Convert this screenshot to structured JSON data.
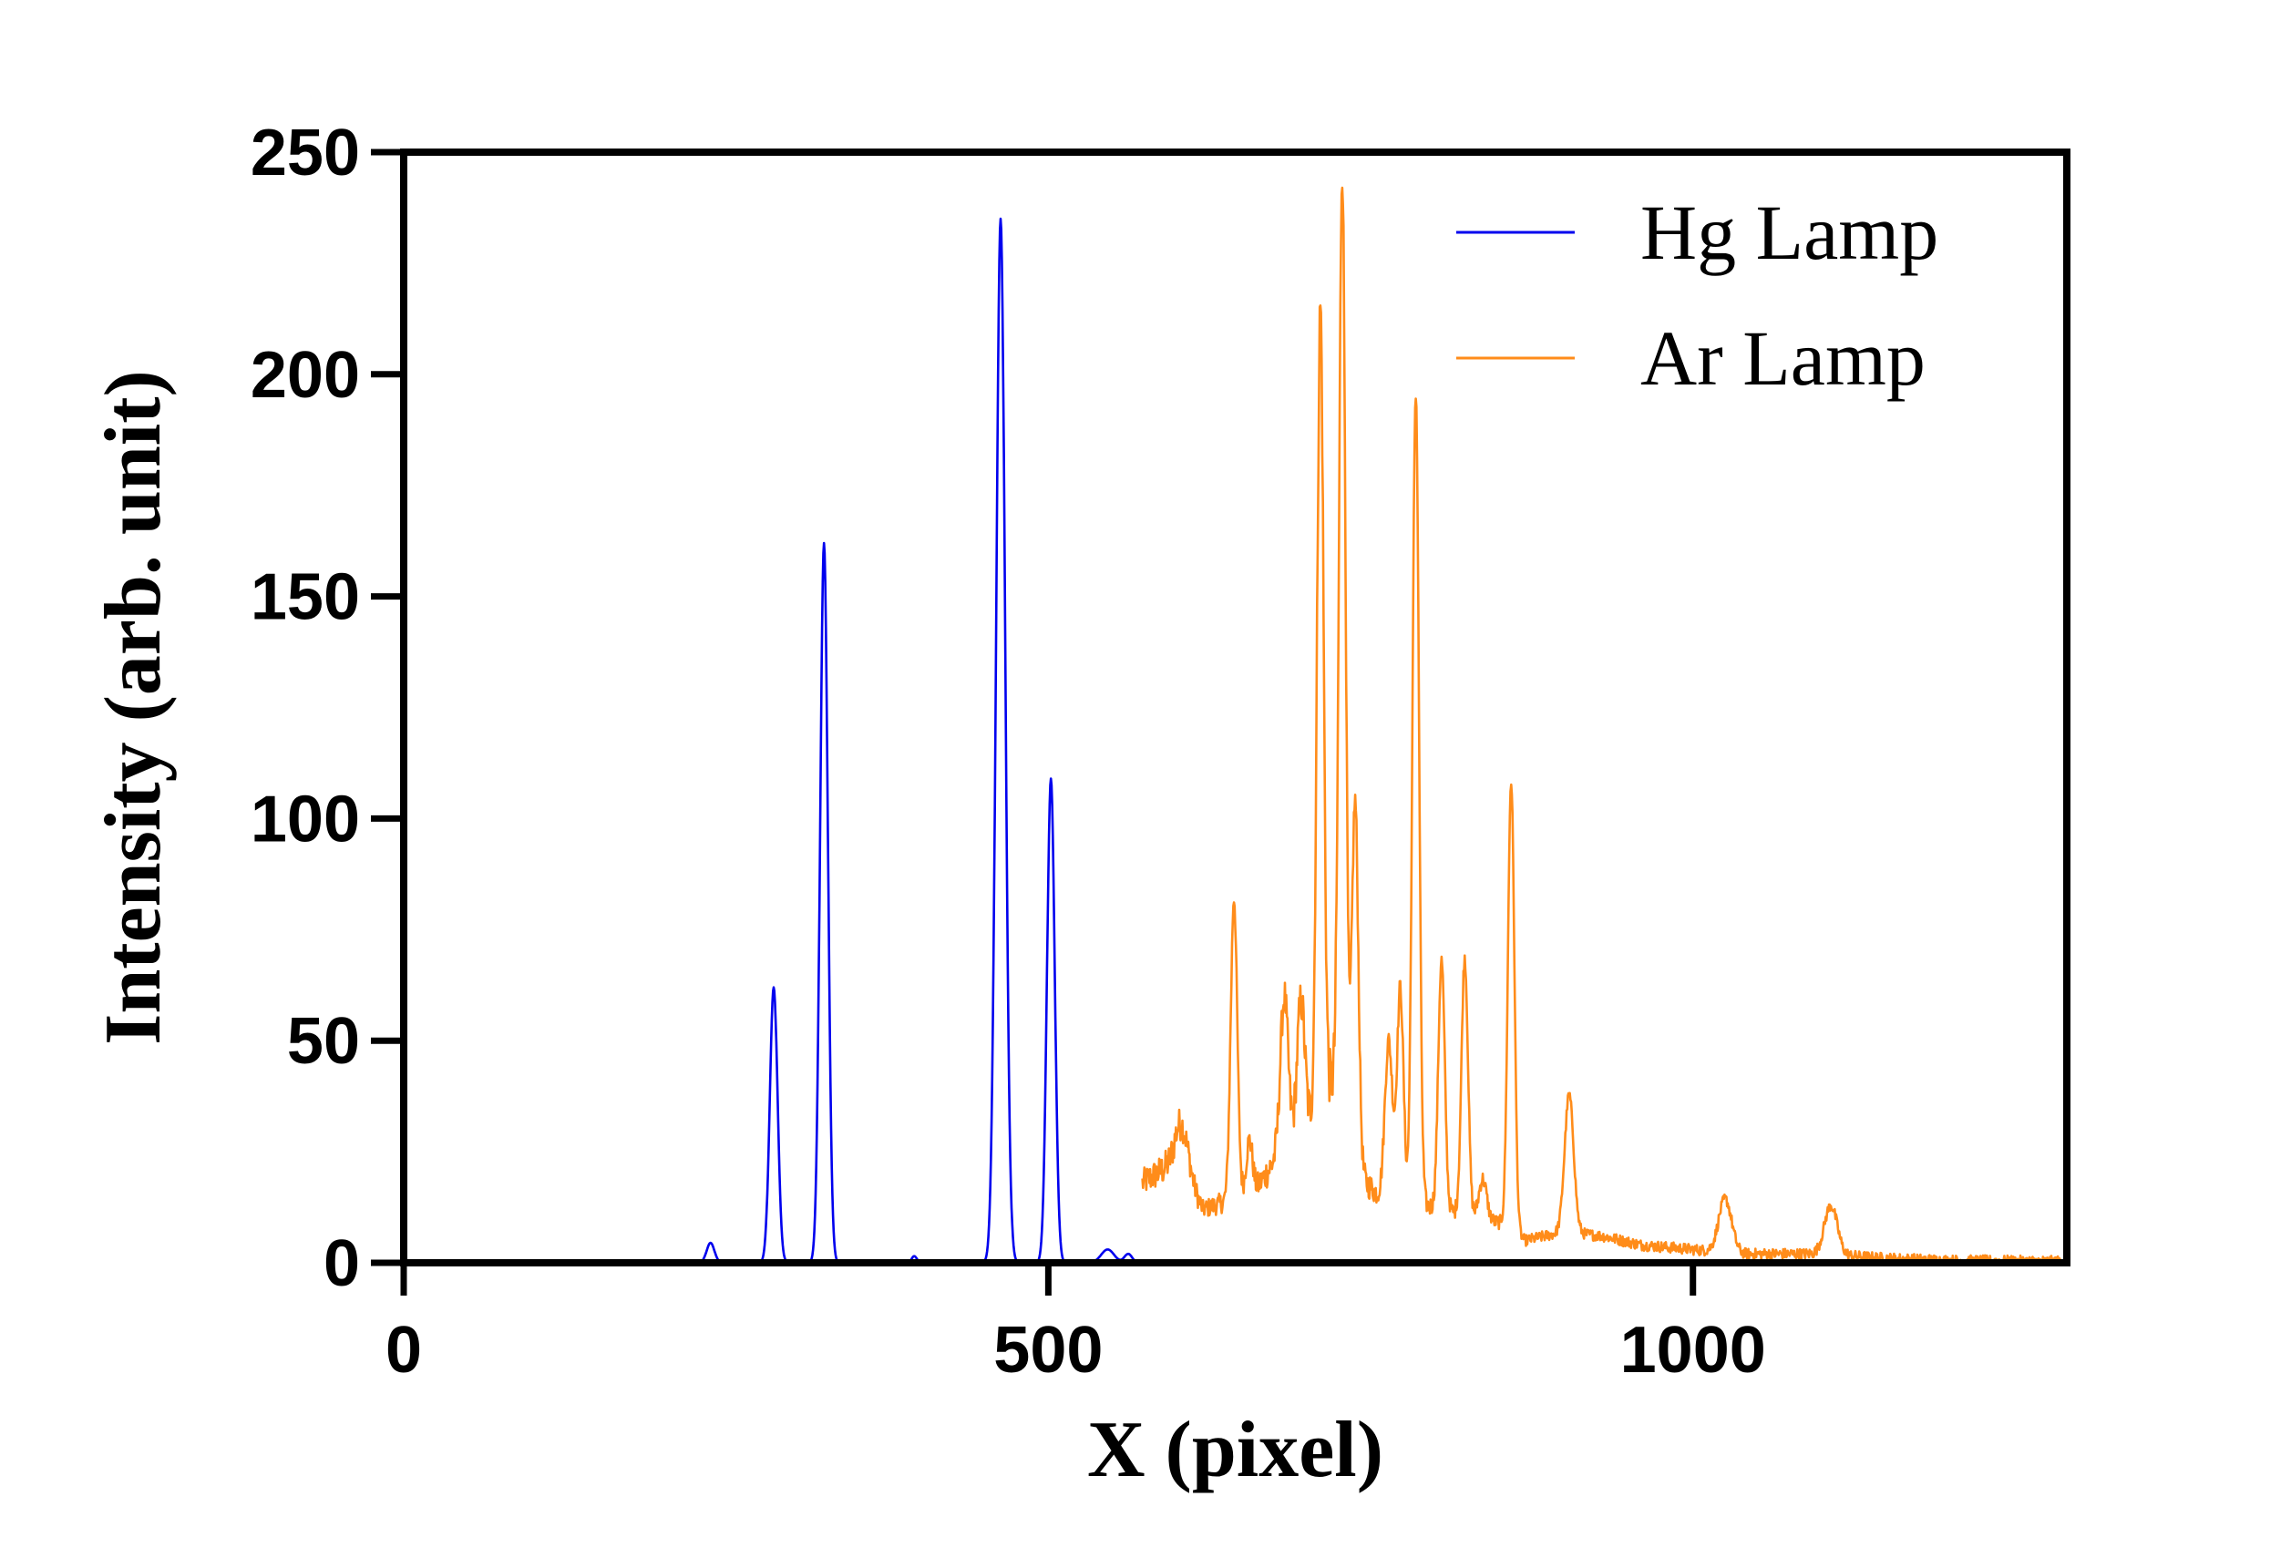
{
  "chart_data": {
    "type": "line",
    "xlabel": "X (pixel)",
    "ylabel": "Intensity (arb. unit)",
    "xlim": [
      0,
      1290
    ],
    "ylim": [
      0,
      250
    ],
    "x_ticks": [
      0,
      500,
      1000
    ],
    "y_ticks": [
      0,
      50,
      100,
      150,
      200,
      250
    ],
    "grid": false,
    "legend_position": "top-right",
    "series": [
      {
        "name": "Hg Lamp",
        "color": "#0000ee",
        "baseline": 0,
        "x_range": [
          0,
          568
        ],
        "peaks": [
          {
            "x": 238,
            "y": 4.5,
            "w": 3
          },
          {
            "x": 287,
            "y": 62,
            "w": 3
          },
          {
            "x": 326,
            "y": 162,
            "w": 3
          },
          {
            "x": 396,
            "y": 1.5,
            "w": 2
          },
          {
            "x": 463,
            "y": 235,
            "w": 3.5
          },
          {
            "x": 502,
            "y": 109,
            "w": 3
          },
          {
            "x": 546,
            "y": 3,
            "w": 5
          },
          {
            "x": 562,
            "y": 2,
            "w": 3
          }
        ]
      },
      {
        "name": "Ar Lamp",
        "color": "#ff8c1a",
        "x_range": [
          573,
          1290
        ],
        "background": [
          [
            573,
            18
          ],
          [
            600,
            23
          ],
          [
            620,
            12
          ],
          [
            640,
            14
          ],
          [
            660,
            16
          ],
          [
            680,
            25
          ],
          [
            700,
            30
          ],
          [
            720,
            40
          ],
          [
            740,
            20
          ],
          [
            760,
            14
          ],
          [
            790,
            13
          ],
          [
            820,
            11
          ],
          [
            850,
            9
          ],
          [
            870,
            5
          ],
          [
            900,
            7
          ],
          [
            930,
            6
          ],
          [
            960,
            4
          ],
          [
            1000,
            3
          ],
          [
            1040,
            2
          ],
          [
            1100,
            2
          ],
          [
            1150,
            1
          ],
          [
            1200,
            0.5
          ],
          [
            1290,
            0.3
          ]
        ],
        "peaks": [
          {
            "x": 604,
            "y": 10,
            "w": 5
          },
          {
            "x": 644,
            "y": 68,
            "w": 2.5
          },
          {
            "x": 656,
            "y": 12,
            "w": 2.5
          },
          {
            "x": 683,
            "y": 34,
            "w": 3
          },
          {
            "x": 696,
            "y": 30,
            "w": 3
          },
          {
            "x": 711,
            "y": 180,
            "w": 2.5
          },
          {
            "x": 728,
            "y": 215,
            "w": 2.5
          },
          {
            "x": 738,
            "y": 82,
            "w": 2.5
          },
          {
            "x": 764,
            "y": 36,
            "w": 3
          },
          {
            "x": 773,
            "y": 48,
            "w": 2.5
          },
          {
            "x": 785,
            "y": 183,
            "w": 2.5
          },
          {
            "x": 805,
            "y": 56,
            "w": 2.5
          },
          {
            "x": 823,
            "y": 58,
            "w": 2.5
          },
          {
            "x": 837,
            "y": 9,
            "w": 3
          },
          {
            "x": 859,
            "y": 101,
            "w": 2.5
          },
          {
            "x": 904,
            "y": 31,
            "w": 3.5
          },
          {
            "x": 1025,
            "y": 12,
            "w": 5
          },
          {
            "x": 1107,
            "y": 11,
            "w": 5
          }
        ]
      }
    ]
  }
}
